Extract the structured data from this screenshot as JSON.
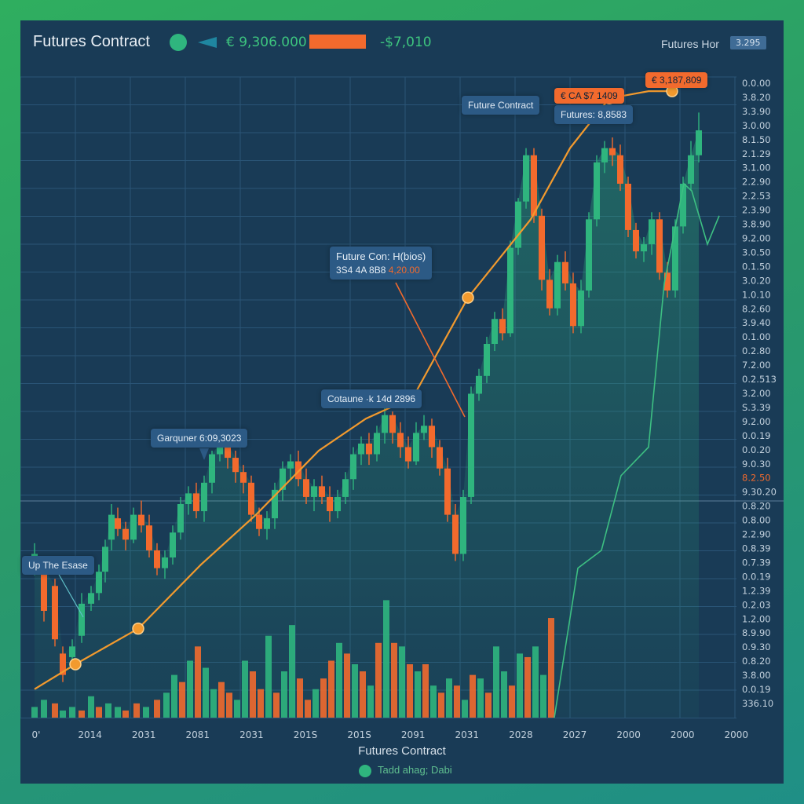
{
  "header": {
    "title": "Futures Contract",
    "price_primary": "€ 9,306.000",
    "price_secondary": "-$7,010",
    "right_label": "Futures Hor",
    "right_badge": "3.295"
  },
  "colors": {
    "up": "#2fb57e",
    "down": "#f26a2d",
    "trend": "#f29a2e",
    "grid": "#2a5577",
    "background": "#193b56",
    "accent_line": "#3dbf82"
  },
  "annotations": [
    {
      "title": "Future Contract"
    },
    {
      "title": "Futures: 8,8583"
    },
    {
      "title": "€ CA $7 1409"
    },
    {
      "title": "€ 3,187,809"
    },
    {
      "title": "Future Con: H(bios)",
      "sub": "3S4 4A 8B8",
      "sub_highlight": "4,20.00"
    },
    {
      "title": "Cotaune ·k 14d 2896"
    },
    {
      "title": "Garquner 6:09,3023"
    },
    {
      "title": "Up The Esase"
    }
  ],
  "chart_data": {
    "type": "bar",
    "title": "Futures Contract",
    "xlabel": "Futures Contract",
    "x_tick_labels": [
      "0'",
      "2014",
      "2031",
      "2081",
      "2031",
      "201S",
      "201S",
      "2091",
      "2031",
      "2028",
      "2027",
      "2000",
      "2000",
      "2000"
    ],
    "y_tick_labels": [
      "0.0.00",
      "3.8.20",
      "3.3.90",
      "3.0.00",
      "8.1.50",
      "2.1.29",
      "3.1.00",
      "2.2.90",
      "2.2.53",
      "2.3.90",
      "3.8.90",
      "9.2.00",
      "3.0.50",
      "0.1.50",
      "3.0.20",
      "1.0.10",
      "8.2.60",
      "3.9.40",
      "0.1.00",
      "0.2.80",
      "7.2.00",
      "0.2.513",
      "3.2.00",
      "S.3.39",
      "9.2.00",
      "0.0.19",
      "0.0.20",
      "9.0.30",
      "8.2.50",
      "9.30.20",
      "0.8.20",
      "0.8.00",
      "2.2.90",
      "0.8.39",
      "0.7.39",
      "0.0.19",
      "1.2.39",
      "0.2.03",
      "1.2.00",
      "8.9.90",
      "0.9.30",
      "0.8.20",
      "3.8.00",
      "0.0.19",
      "336.10"
    ],
    "y_tick_highlight_index": 28,
    "candles": [
      [
        18,
        43,
        46,
        40,
        49
      ],
      [
        30,
        42,
        30,
        27,
        44
      ],
      [
        44,
        37,
        22,
        20,
        39
      ],
      [
        54,
        18,
        12,
        10,
        20
      ],
      [
        66,
        17,
        20,
        15,
        22
      ],
      [
        78,
        23,
        32,
        21,
        35
      ],
      [
        90,
        32,
        35,
        30,
        37
      ],
      [
        100,
        35,
        41,
        33,
        43
      ],
      [
        108,
        41,
        48,
        38,
        50
      ],
      [
        116,
        50,
        57,
        47,
        60
      ],
      [
        124,
        56,
        53,
        51,
        59
      ],
      [
        134,
        53,
        50,
        47,
        55
      ],
      [
        144,
        50,
        57,
        49,
        59
      ],
      [
        154,
        57,
        54,
        52,
        61
      ],
      [
        164,
        54,
        47,
        45,
        57
      ],
      [
        174,
        47,
        42,
        40,
        49
      ],
      [
        184,
        42,
        45,
        39,
        47
      ],
      [
        194,
        45,
        52,
        43,
        54
      ],
      [
        204,
        52,
        60,
        50,
        62
      ],
      [
        214,
        60,
        63,
        57,
        65
      ],
      [
        224,
        63,
        58,
        56,
        66
      ],
      [
        234,
        58,
        66,
        55,
        68
      ],
      [
        244,
        66,
        74,
        63,
        75
      ],
      [
        254,
        74,
        77,
        72,
        80
      ],
      [
        264,
        77,
        73,
        70,
        79
      ],
      [
        274,
        73,
        69,
        66,
        75
      ],
      [
        284,
        69,
        66,
        63,
        71
      ],
      [
        294,
        66,
        57,
        55,
        68
      ],
      [
        304,
        57,
        53,
        51,
        59
      ],
      [
        314,
        53,
        56,
        50,
        58
      ],
      [
        324,
        56,
        64,
        53,
        66
      ],
      [
        334,
        64,
        70,
        61,
        72
      ],
      [
        344,
        70,
        72,
        67,
        74
      ],
      [
        354,
        72,
        67,
        65,
        75
      ],
      [
        364,
        67,
        62,
        60,
        70
      ],
      [
        374,
        62,
        65,
        58,
        67
      ],
      [
        384,
        65,
        62,
        60,
        68
      ],
      [
        394,
        62,
        58,
        55,
        65
      ],
      [
        404,
        58,
        62,
        56,
        64
      ],
      [
        414,
        62,
        67,
        60,
        69
      ],
      [
        424,
        67,
        74,
        64,
        76
      ],
      [
        434,
        74,
        77,
        71,
        79
      ],
      [
        444,
        77,
        74,
        71,
        80
      ],
      [
        454,
        74,
        80,
        72,
        82
      ],
      [
        464,
        80,
        85,
        77,
        87
      ],
      [
        474,
        85,
        80,
        77,
        86
      ],
      [
        484,
        80,
        76,
        73,
        83
      ],
      [
        494,
        76,
        72,
        70,
        79
      ],
      [
        504,
        72,
        80,
        71,
        83
      ],
      [
        514,
        80,
        82,
        78,
        85
      ],
      [
        524,
        82,
        76,
        73,
        84
      ],
      [
        534,
        76,
        70,
        68,
        78
      ],
      [
        544,
        70,
        57,
        55,
        73
      ],
      [
        554,
        57,
        46,
        44,
        60
      ],
      [
        564,
        46,
        62,
        44,
        64
      ],
      [
        574,
        62,
        91,
        60,
        93
      ],
      [
        584,
        91,
        96,
        89,
        98
      ],
      [
        594,
        96,
        105,
        94,
        107
      ],
      [
        604,
        105,
        112,
        103,
        114
      ],
      [
        614,
        112,
        108,
        106,
        115
      ],
      [
        624,
        108,
        132,
        107,
        134
      ],
      [
        634,
        132,
        145,
        130,
        146
      ],
      [
        644,
        145,
        158,
        143,
        160
      ],
      [
        654,
        158,
        141,
        139,
        160
      ],
      [
        664,
        141,
        123,
        120,
        143
      ],
      [
        674,
        123,
        115,
        113,
        126
      ],
      [
        684,
        115,
        128,
        113,
        130
      ],
      [
        694,
        128,
        122,
        120,
        131
      ],
      [
        704,
        122,
        110,
        108,
        125
      ],
      [
        714,
        110,
        120,
        108,
        123
      ],
      [
        724,
        120,
        140,
        118,
        142
      ],
      [
        734,
        140,
        156,
        138,
        158
      ],
      [
        744,
        156,
        160,
        153,
        162
      ],
      [
        754,
        160,
        158,
        155,
        163
      ],
      [
        764,
        158,
        150,
        148,
        161
      ],
      [
        774,
        150,
        137,
        135,
        152
      ],
      [
        784,
        137,
        131,
        129,
        139
      ],
      [
        794,
        131,
        133,
        128,
        135
      ],
      [
        804,
        133,
        140,
        130,
        142
      ],
      [
        814,
        140,
        125,
        123,
        142
      ],
      [
        824,
        125,
        120,
        118,
        128
      ],
      [
        834,
        120,
        138,
        118,
        140
      ],
      [
        844,
        138,
        150,
        136,
        152
      ],
      [
        854,
        150,
        158,
        148,
        162
      ],
      [
        864,
        158,
        165,
        156,
        170
      ]
    ],
    "volumes": [
      [
        18,
        3,
        1
      ],
      [
        30,
        5,
        1
      ],
      [
        44,
        4,
        0
      ],
      [
        54,
        2,
        1
      ],
      [
        66,
        3,
        1
      ],
      [
        78,
        2,
        0
      ],
      [
        90,
        6,
        1
      ],
      [
        100,
        3,
        0
      ],
      [
        112,
        4,
        1
      ],
      [
        124,
        3,
        1
      ],
      [
        134,
        2,
        0
      ],
      [
        148,
        4,
        0
      ],
      [
        160,
        3,
        1
      ],
      [
        174,
        5,
        0
      ],
      [
        186,
        7,
        1
      ],
      [
        196,
        12,
        1
      ],
      [
        206,
        10,
        0
      ],
      [
        216,
        16,
        1
      ],
      [
        226,
        20,
        0
      ],
      [
        236,
        14,
        1
      ],
      [
        246,
        8,
        1
      ],
      [
        256,
        10,
        0
      ],
      [
        266,
        7,
        0
      ],
      [
        276,
        5,
        1
      ],
      [
        286,
        16,
        1
      ],
      [
        296,
        13,
        0
      ],
      [
        306,
        8,
        0
      ],
      [
        316,
        23,
        1
      ],
      [
        326,
        7,
        0
      ],
      [
        336,
        13,
        1
      ],
      [
        346,
        26,
        1
      ],
      [
        356,
        11,
        0
      ],
      [
        366,
        5,
        0
      ],
      [
        376,
        8,
        1
      ],
      [
        386,
        11,
        0
      ],
      [
        396,
        16,
        0
      ],
      [
        406,
        21,
        1
      ],
      [
        416,
        18,
        0
      ],
      [
        426,
        15,
        1
      ],
      [
        436,
        13,
        0
      ],
      [
        446,
        9,
        1
      ],
      [
        456,
        21,
        0
      ],
      [
        466,
        33,
        1
      ],
      [
        476,
        21,
        0
      ],
      [
        486,
        20,
        1
      ],
      [
        496,
        15,
        0
      ],
      [
        506,
        13,
        1
      ],
      [
        516,
        15,
        0
      ],
      [
        526,
        9,
        1
      ],
      [
        536,
        7,
        0
      ],
      [
        546,
        11,
        1
      ],
      [
        556,
        9,
        0
      ],
      [
        566,
        5,
        1
      ],
      [
        576,
        12,
        0
      ],
      [
        586,
        11,
        1
      ],
      [
        596,
        7,
        0
      ],
      [
        606,
        20,
        1
      ],
      [
        616,
        13,
        1
      ],
      [
        626,
        9,
        0
      ],
      [
        636,
        18,
        1
      ],
      [
        646,
        17,
        0
      ],
      [
        656,
        20,
        1
      ],
      [
        666,
        12,
        1
      ],
      [
        676,
        28,
        0
      ]
    ],
    "trend_line": [
      [
        18,
        8
      ],
      [
        70,
        15
      ],
      [
        150,
        25
      ],
      [
        230,
        43
      ],
      [
        300,
        57
      ],
      [
        380,
        75
      ],
      [
        440,
        84
      ],
      [
        500,
        90
      ],
      [
        520,
        98
      ],
      [
        570,
        118
      ],
      [
        650,
        140
      ],
      [
        700,
        160
      ],
      [
        750,
        174
      ],
      [
        800,
        176
      ],
      [
        830,
        176
      ]
    ],
    "trend_markers": [
      [
        70,
        15
      ],
      [
        150,
        25
      ],
      [
        500,
        90
      ],
      [
        570,
        118
      ],
      [
        750,
        174
      ],
      [
        830,
        176
      ]
    ],
    "accent_line": [
      [
        680,
        0
      ],
      [
        710,
        42
      ],
      [
        740,
        47
      ],
      [
        765,
        68
      ],
      [
        800,
        76
      ],
      [
        820,
        122
      ],
      [
        845,
        150
      ],
      [
        855,
        148
      ],
      [
        875,
        133
      ],
      [
        890,
        141
      ]
    ]
  }
}
